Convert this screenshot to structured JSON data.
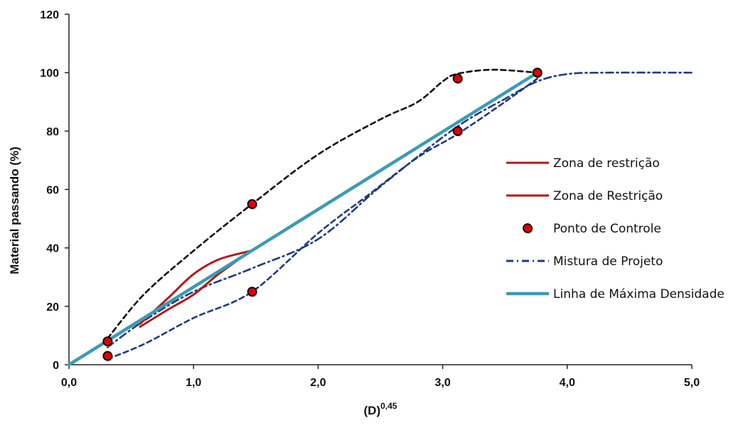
{
  "chart_data": {
    "type": "line",
    "title": "",
    "xlabel_base": "(D)",
    "xlabel_sup": "0,45",
    "ylabel": "Material passando (%)",
    "xlim": [
      0,
      5
    ],
    "ylim": [
      0,
      120
    ],
    "x_ticks": [
      "0,0",
      "1,0",
      "2,0",
      "3,0",
      "4,0",
      "5,0"
    ],
    "y_ticks": [
      "0",
      "20",
      "40",
      "60",
      "80",
      "100",
      "120"
    ],
    "grid": false,
    "legend_position": "right",
    "series": [
      {
        "name": "Zona de restrição",
        "style": "solid",
        "color": "#b11a1a",
        "x": [
          0.57,
          0.8,
          1.0,
          1.2,
          1.46
        ],
        "y": [
          13,
          19,
          24,
          31,
          39
        ]
      },
      {
        "name": "Zona de Restrição",
        "style": "solid",
        "color": "#b11a1a",
        "x": [
          0.57,
          0.8,
          1.0,
          1.2,
          1.46
        ],
        "y": [
          14,
          23,
          31,
          36,
          39
        ]
      },
      {
        "name": "Ponto de Controle",
        "style": "markers",
        "color": "#e00000",
        "x": [
          0.31,
          0.31,
          1.47,
          1.47,
          3.12,
          3.12,
          3.76
        ],
        "y": [
          8,
          3,
          55,
          25,
          98,
          80,
          100
        ]
      },
      {
        "name": "Mistura de Projeto",
        "style": "dashdot",
        "color": "#1f3c78",
        "x": [
          0.31,
          0.6,
          1.0,
          1.47,
          2.0,
          2.5,
          3.1,
          3.5,
          3.76,
          4.0,
          4.3,
          5.0
        ],
        "y": [
          6,
          15,
          25,
          33,
          43,
          61,
          81,
          91,
          97,
          99.5,
          100,
          100
        ]
      },
      {
        "name": "Linha de Máxima Densidade",
        "style": "solid",
        "color": "#3b9bb5",
        "x": [
          0.0,
          3.76
        ],
        "y": [
          0,
          100
        ]
      },
      {
        "name": "",
        "style": "dashed",
        "color": "#111111",
        "x": [
          0.31,
          0.6,
          1.0,
          1.47,
          2.0,
          2.5,
          2.8,
          3.0,
          3.12,
          3.4,
          3.76
        ],
        "y": [
          9,
          24,
          39,
          55,
          72,
          84,
          90,
          97,
          99.6,
          101,
          100
        ]
      },
      {
        "name": "",
        "style": "dashed",
        "color": "#1f3c78",
        "x": [
          0.31,
          0.6,
          1.0,
          1.47,
          2.0,
          2.4,
          2.8,
          3.12,
          3.5,
          3.76
        ],
        "y": [
          2,
          7,
          16,
          25,
          45,
          58,
          71,
          79,
          90,
          98
        ]
      }
    ]
  }
}
